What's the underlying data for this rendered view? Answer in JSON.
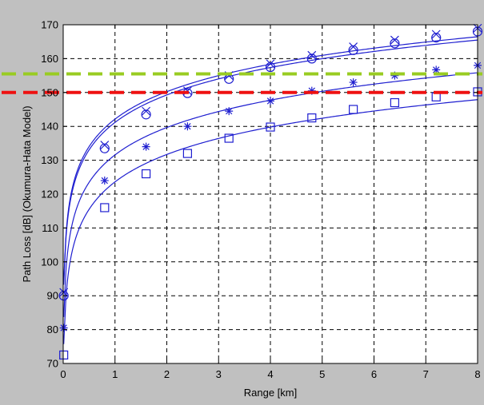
{
  "chart_data": {
    "type": "line",
    "title": "",
    "xlabel": "Range [km]",
    "ylabel": "Path Loss [dB] (Okumura-Hata Model)",
    "xlim": [
      0,
      8
    ],
    "ylim": [
      70,
      170
    ],
    "xticks": [
      "0",
      "1",
      "2",
      "3",
      "4",
      "5",
      "6",
      "7",
      "8"
    ],
    "yticks": [
      "70",
      "80",
      "90",
      "100",
      "110",
      "120",
      "130",
      "140",
      "150",
      "160",
      "170"
    ],
    "grid": true,
    "legend": "none",
    "colors": {
      "series": "#1f1fd0",
      "threshold_green": "#99cc22",
      "threshold_red": "#ee1111",
      "plot_background": "#ffffff",
      "figure_background": "#c0c0c0"
    },
    "series": [
      {
        "marker": "x",
        "x": [
          0.01,
          0.8,
          1.6,
          2.4,
          3.2,
          4.0,
          4.8,
          5.6,
          6.4,
          7.2,
          8.0
        ],
        "values": [
          91,
          134.5,
          144.5,
          150.5,
          155,
          158.5,
          161,
          163.5,
          165.5,
          167.2,
          169
        ]
      },
      {
        "marker": "circle",
        "x": [
          0.01,
          0.8,
          1.6,
          2.4,
          3.2,
          4.0,
          4.8,
          5.6,
          6.4,
          7.2,
          8.0
        ],
        "values": [
          90,
          133.5,
          143.5,
          149.8,
          154,
          157.5,
          160,
          162.5,
          164.5,
          166.2,
          168
        ]
      },
      {
        "marker": "star",
        "x": [
          0.01,
          0.8,
          1.6,
          2.4,
          3.2,
          4.0,
          4.8,
          5.6,
          6.4,
          7.2,
          8.0
        ],
        "values": [
          80.5,
          124,
          134,
          140,
          144.5,
          147.5,
          150.5,
          153,
          155,
          156.7,
          158
        ]
      },
      {
        "marker": "square",
        "x": [
          0.01,
          0.8,
          1.6,
          2.4,
          3.2,
          4.0,
          4.8,
          5.6,
          6.4,
          7.2,
          8.0
        ],
        "values": [
          72.5,
          116,
          126,
          132,
          136.5,
          139.8,
          142.5,
          145,
          147,
          148.7,
          150.2
        ]
      }
    ],
    "thresholds": [
      {
        "y": 155.5,
        "color": "#99cc22",
        "style": "dashed"
      },
      {
        "y": 150,
        "color": "#ee1111",
        "style": "dashed"
      }
    ]
  }
}
